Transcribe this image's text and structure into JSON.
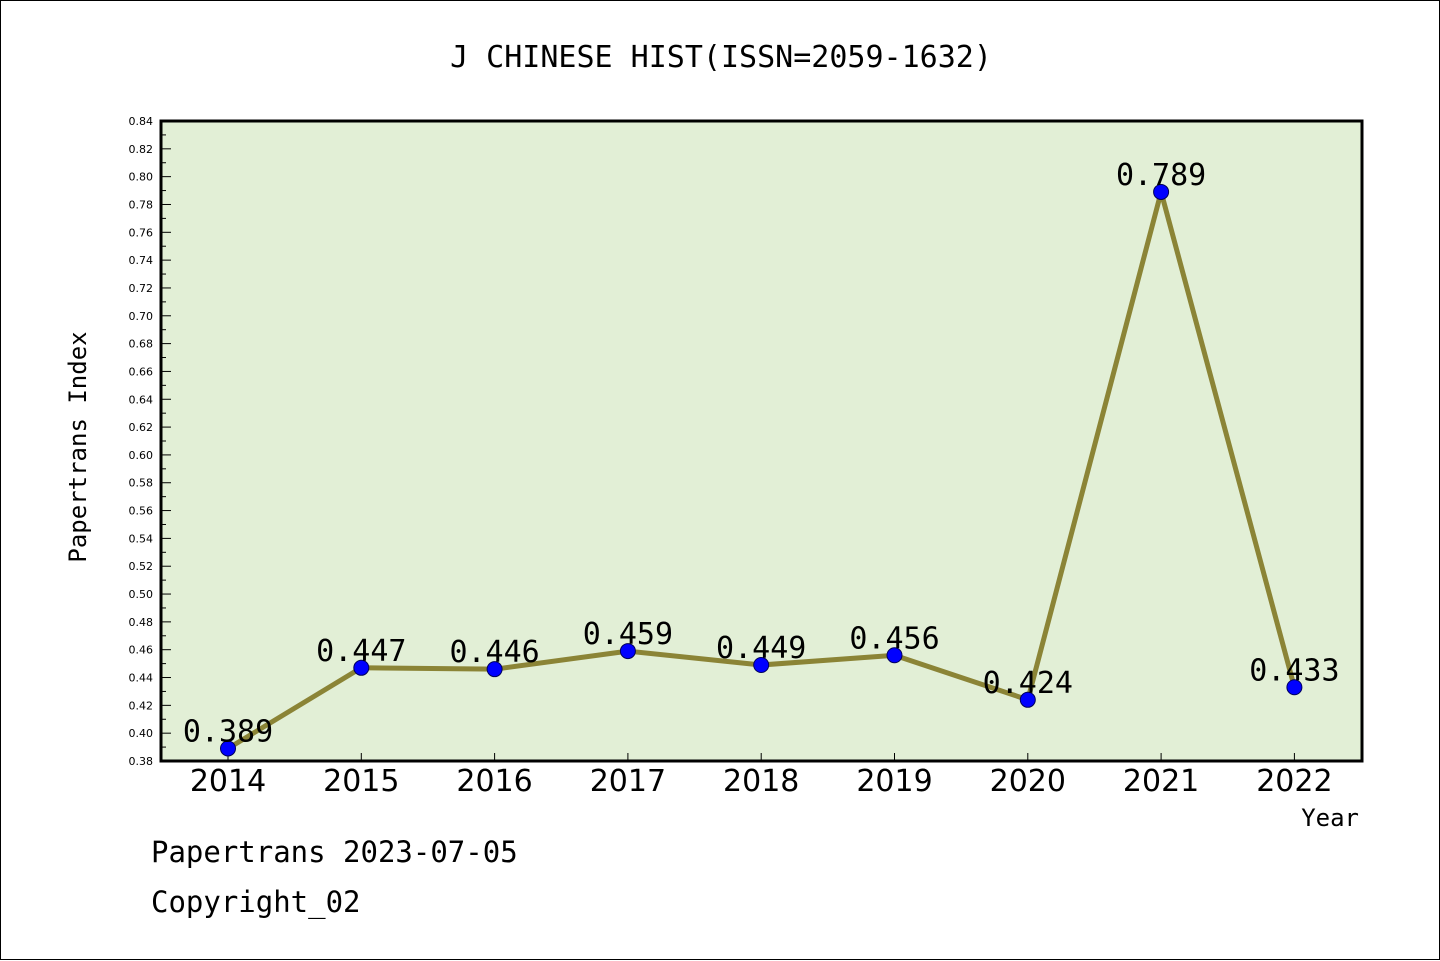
{
  "chart_data": {
    "type": "line",
    "title": "J CHINESE HIST(ISSN=2059-1632)",
    "xlabel": "Year",
    "ylabel": "Papertrans Index",
    "categories": [
      "2014",
      "2015",
      "2016",
      "2017",
      "2018",
      "2019",
      "2020",
      "2021",
      "2022"
    ],
    "series": [
      {
        "values": [
          0.389,
          0.447,
          0.446,
          0.459,
          0.449,
          0.456,
          0.424,
          0.789,
          0.433
        ],
        "data_labels": [
          "0.389",
          "0.447",
          "0.446",
          "0.459",
          "0.449",
          "0.456",
          "0.424",
          "0.789",
          "0.433"
        ]
      }
    ],
    "ylim": [
      0.38,
      0.84
    ],
    "yticks": [
      "0.38",
      "0.40",
      "0.42",
      "0.44",
      "0.46",
      "0.48",
      "0.50",
      "0.52",
      "0.54",
      "0.56",
      "0.58",
      "0.60",
      "0.62",
      "0.64",
      "0.66",
      "0.68",
      "0.70",
      "0.72",
      "0.74",
      "0.76",
      "0.78",
      "0.80",
      "0.82",
      "0.84"
    ],
    "grid": false,
    "legend": "none",
    "colors": {
      "plot_background": "#e2efd6",
      "line": "#8b8436",
      "marker": "#0000ff",
      "marker_edge": "#00005a"
    }
  },
  "footer": {
    "line1": "Papertrans 2023-07-05",
    "line2": "Copyright_02"
  }
}
